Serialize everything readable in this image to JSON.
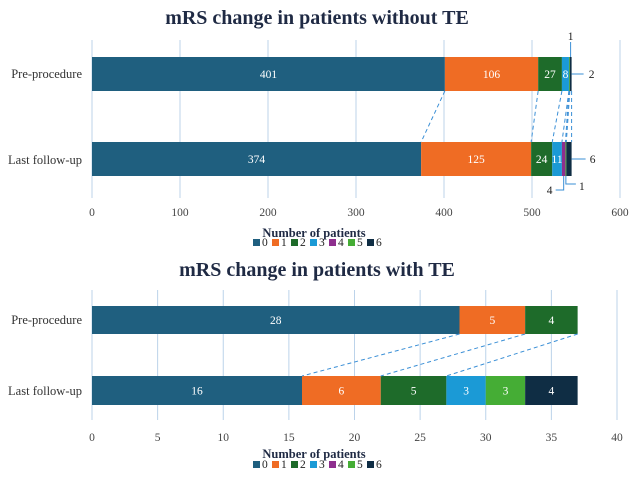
{
  "legend_labels": [
    "0",
    "1",
    "2",
    "3",
    "4",
    "5",
    "6"
  ],
  "colors": [
    "#1f5f7f",
    "#ef6c24",
    "#1e6b2a",
    "#1b9ad6",
    "#8e2f8e",
    "#45ad35",
    "#0f2d44"
  ],
  "chart_data": [
    {
      "type": "bar",
      "orientation": "horizontal",
      "stacked": true,
      "title": "mRS change in patients without TE",
      "xlabel": "Number of patients",
      "xlim": [
        0,
        600
      ],
      "xticks": [
        0,
        100,
        200,
        300,
        400,
        500,
        600
      ],
      "grid": true,
      "legend_position": "bottom",
      "categories": [
        "Pre-procedure",
        "Last follow-up"
      ],
      "series": [
        {
          "name": "0",
          "values": [
            401,
            374
          ]
        },
        {
          "name": "1",
          "values": [
            106,
            125
          ]
        },
        {
          "name": "2",
          "values": [
            27,
            24
          ]
        },
        {
          "name": "3",
          "values": [
            8,
            11
          ]
        },
        {
          "name": "4",
          "values": [
            0,
            4
          ]
        },
        {
          "name": "5",
          "values": [
            1,
            1
          ]
        },
        {
          "name": "6",
          "values": [
            2,
            6
          ]
        }
      ],
      "inside_labels": [
        [
          "401",
          "106",
          "27",
          "8",
          "",
          "",
          ""
        ],
        [
          "374",
          "125",
          "24",
          "11",
          "",
          "",
          ""
        ]
      ],
      "callouts": {
        "pre": [
          "1",
          "2"
        ],
        "post": [
          "6",
          "4",
          "1"
        ]
      }
    },
    {
      "type": "bar",
      "orientation": "horizontal",
      "stacked": true,
      "title": "mRS change in patients with TE",
      "xlabel": "Number of patients",
      "xlim": [
        0,
        40
      ],
      "xticks": [
        0,
        5,
        10,
        15,
        20,
        25,
        30,
        35,
        40
      ],
      "grid": true,
      "legend_position": "bottom",
      "categories": [
        "Pre-procedure",
        "Last follow-up"
      ],
      "series": [
        {
          "name": "0",
          "values": [
            28,
            16
          ]
        },
        {
          "name": "1",
          "values": [
            5,
            6
          ]
        },
        {
          "name": "2",
          "values": [
            4,
            5
          ]
        },
        {
          "name": "3",
          "values": [
            0,
            3
          ]
        },
        {
          "name": "4",
          "values": [
            0,
            0
          ]
        },
        {
          "name": "5",
          "values": [
            0,
            3
          ]
        },
        {
          "name": "6",
          "values": [
            0,
            4
          ]
        }
      ],
      "inside_labels": [
        [
          "28",
          "5",
          "4",
          "",
          "",
          "",
          ""
        ],
        [
          "16",
          "6",
          "5",
          "3",
          "",
          "3",
          "4"
        ]
      ]
    }
  ]
}
